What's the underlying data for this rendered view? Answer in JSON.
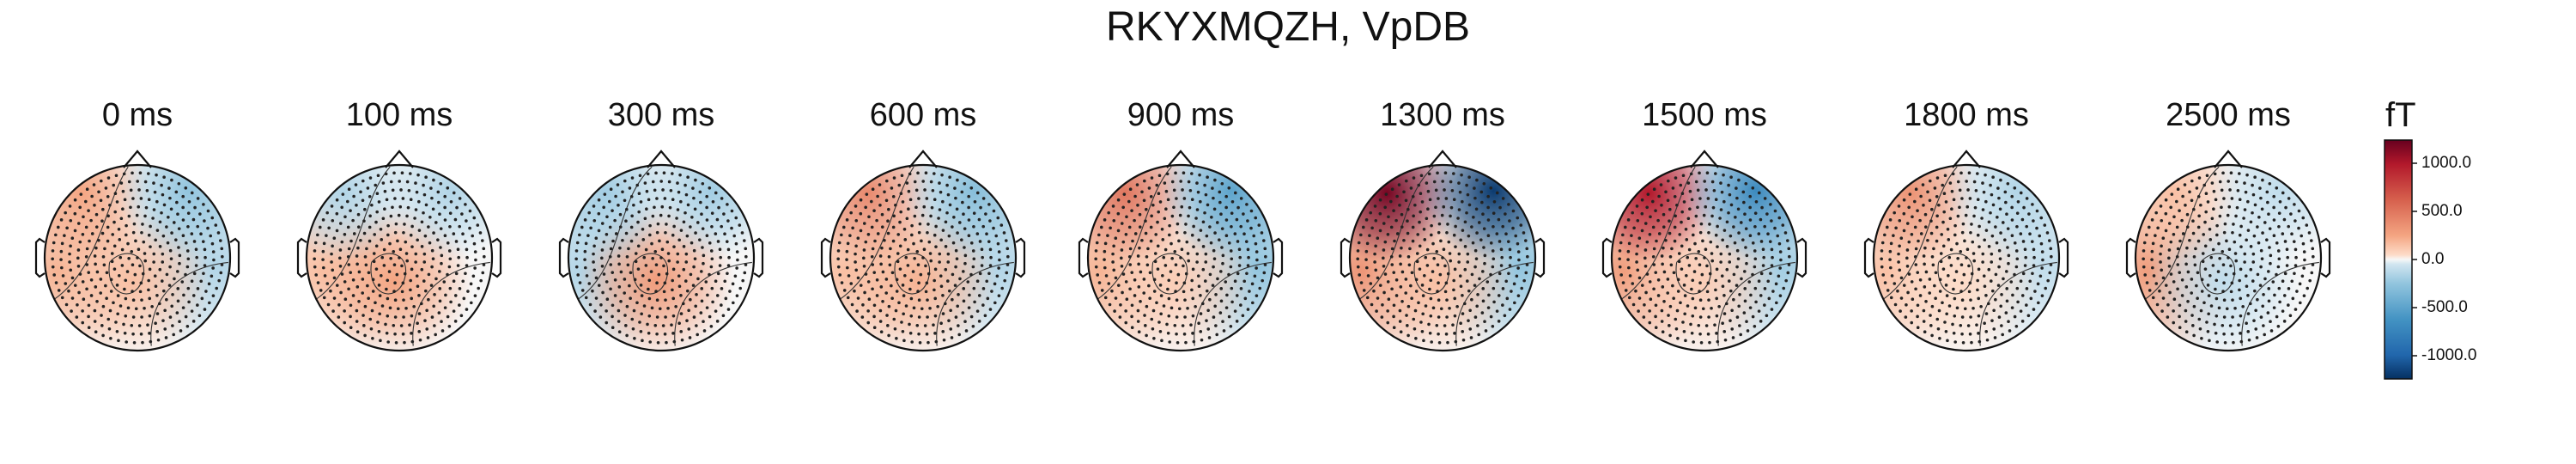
{
  "title": "RKYXMQZH, VpDB",
  "colorbar": {
    "unit": "fT",
    "ticks": [
      "1000.0",
      "500.0",
      "0.0",
      "-500.0",
      "-1000.0"
    ],
    "tick_values": [
      1000,
      500,
      0,
      -500,
      -1000
    ],
    "range": [
      -1250,
      1250
    ],
    "colormap": "RdBu_r",
    "colors": {
      "max": "#67001f",
      "pos": "#d6604d",
      "zero": "#f7f7f7",
      "neg": "#4393c3",
      "min": "#053061"
    }
  },
  "chart_data": {
    "type": "heatmap",
    "title": "RKYXMQZH, VpDB",
    "subtype": "topomap-series",
    "unit": "fT",
    "vlim": [
      -1250,
      1250
    ],
    "times": [
      "0 ms",
      "100 ms",
      "300 ms",
      "600 ms",
      "900 ms",
      "1300 ms",
      "1500 ms",
      "1800 ms",
      "2500 ms"
    ],
    "maps": [
      {
        "time": "0 ms",
        "left_front": 250,
        "right_front": -250,
        "center": 150,
        "left_side": 200,
        "right_side": -150
      },
      {
        "time": "100 ms",
        "left_front": -150,
        "right_front": -150,
        "center": 250,
        "left_side": 150,
        "right_side": 0
      },
      {
        "time": "300 ms",
        "left_front": -200,
        "right_front": -200,
        "center": 300,
        "left_side": -150,
        "right_side": 0
      },
      {
        "time": "600 ms",
        "left_front": 400,
        "right_front": -300,
        "center": 200,
        "left_side": 150,
        "right_side": -150
      },
      {
        "time": "900 ms",
        "left_front": 500,
        "right_front": -500,
        "center": 100,
        "left_side": 200,
        "right_side": -250
      },
      {
        "time": "1300 ms",
        "left_front": 1200,
        "right_front": -1200,
        "center": 150,
        "left_side": 350,
        "right_side": -250
      },
      {
        "time": "1500 ms",
        "left_front": 1000,
        "right_front": -700,
        "center": 100,
        "left_side": 300,
        "right_side": -200
      },
      {
        "time": "1800 ms",
        "left_front": 350,
        "right_front": -150,
        "center": 50,
        "left_side": 150,
        "right_side": -100
      },
      {
        "time": "2500 ms",
        "left_front": 150,
        "right_front": -100,
        "center": -100,
        "left_side": 300,
        "right_side": 0
      }
    ]
  }
}
